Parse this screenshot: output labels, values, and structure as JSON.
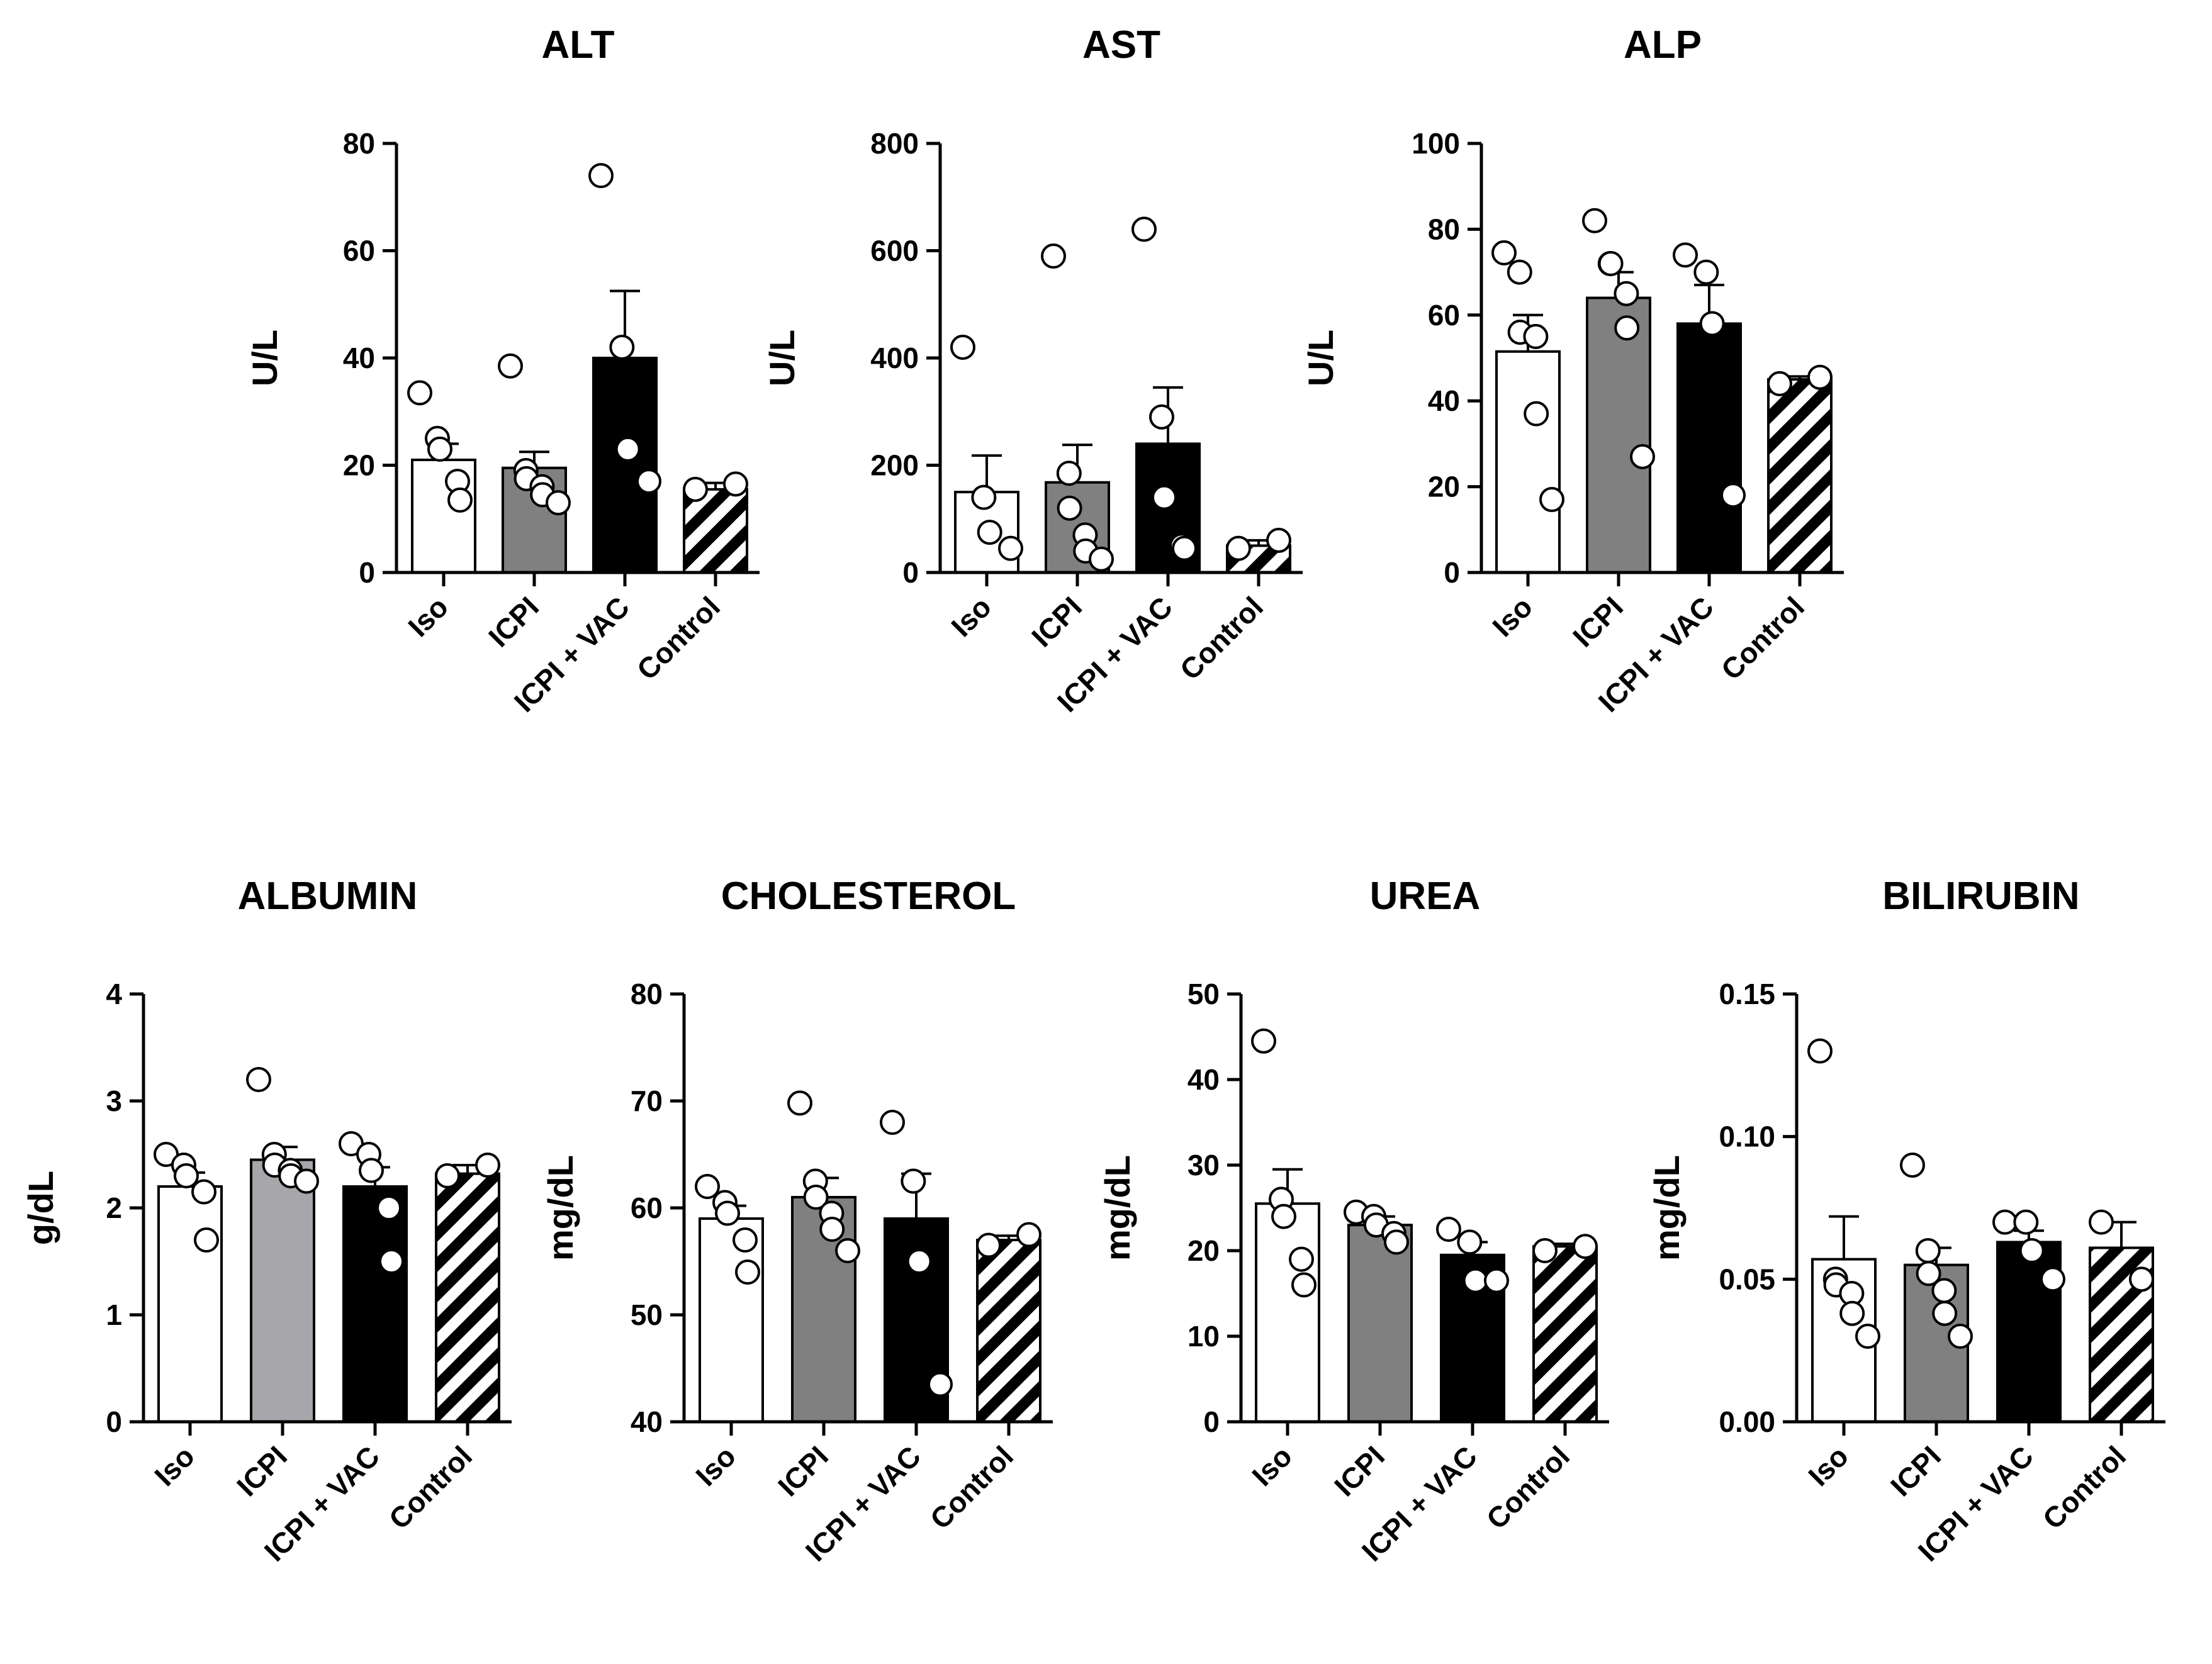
{
  "chart_data": [
    {
      "type": "bar",
      "title": "ALT",
      "ylabel": "U/L",
      "categories": [
        "Iso",
        "ICPI",
        "ICPI + VAC",
        "Control"
      ],
      "ylim": [
        0,
        80
      ],
      "yticks": [
        "0",
        "20",
        "40",
        "60",
        "80"
      ],
      "yticks_values": [
        0,
        20,
        40,
        60,
        80
      ],
      "values": [
        21,
        19.5,
        40,
        15.5
      ],
      "errors": [
        3,
        3,
        12.5,
        1.2
      ],
      "points": [
        [
          33.5,
          25,
          23,
          17,
          13.5
        ],
        [
          38.5,
          19,
          17.5,
          16,
          14.5,
          13
        ],
        [
          74,
          42,
          23,
          17
        ],
        [
          15.5,
          16.5
        ]
      ]
    },
    {
      "type": "bar",
      "title": "AST",
      "ylabel": "U/L",
      "categories": [
        "Iso",
        "ICPI",
        "ICPI + VAC",
        "Control"
      ],
      "ylim": [
        0,
        800
      ],
      "yticks": [
        "0",
        "200",
        "400",
        "600",
        "800"
      ],
      "yticks_values": [
        0,
        200,
        400,
        600,
        800
      ],
      "values": [
        150,
        168,
        240,
        50
      ],
      "errors": [
        68,
        70,
        105,
        10
      ],
      "points": [
        [
          420,
          140,
          75,
          45
        ],
        [
          590,
          185,
          120,
          70,
          40,
          25
        ],
        [
          640,
          290,
          140,
          50,
          45
        ],
        [
          45,
          60
        ]
      ]
    },
    {
      "type": "bar",
      "title": "ALP",
      "ylabel": "U/L",
      "categories": [
        "Iso",
        "ICPI",
        "ICPI + VAC",
        "Control"
      ],
      "ylim": [
        0,
        100
      ],
      "yticks": [
        "0",
        "20",
        "40",
        "60",
        "80",
        "100"
      ],
      "yticks_values": [
        0,
        20,
        40,
        60,
        80,
        100
      ],
      "values": [
        51.5,
        64,
        58,
        45
      ],
      "errors": [
        8.5,
        6,
        9,
        0.7
      ],
      "points": [
        [
          74.5,
          70,
          56,
          55,
          37,
          17
        ],
        [
          82,
          72,
          72,
          65,
          57,
          27
        ],
        [
          74,
          70,
          58,
          18
        ],
        [
          44,
          45.5
        ]
      ]
    },
    {
      "type": "bar",
      "title": "ALBUMIN",
      "ylabel": "g/dL",
      "categories": [
        "Iso",
        "ICPI",
        "ICPI + VAC",
        "Control"
      ],
      "ylim": [
        0,
        4
      ],
      "yticks": [
        "0",
        "1",
        "2",
        "3",
        "4"
      ],
      "yticks_values": [
        0,
        1,
        2,
        3,
        4
      ],
      "values": [
        2.2,
        2.45,
        2.2,
        2.32
      ],
      "errors": [
        0.13,
        0.12,
        0.18,
        0.08
      ],
      "points": [
        [
          2.5,
          2.4,
          2.3,
          2.15,
          1.7
        ],
        [
          3.2,
          2.5,
          2.4,
          2.35,
          2.3,
          2.25
        ],
        [
          2.6,
          2.5,
          2.35,
          2.0,
          1.5
        ],
        [
          2.3,
          2.4
        ]
      ]
    },
    {
      "type": "bar",
      "title": "CHOLESTEROL",
      "ylabel": "mg/dL",
      "categories": [
        "Iso",
        "ICPI",
        "ICPI + VAC",
        "Control"
      ],
      "ylim": [
        40,
        80
      ],
      "yticks": [
        "40",
        "50",
        "60",
        "70",
        "80"
      ],
      "yticks_values": [
        40,
        50,
        60,
        70,
        80
      ],
      "values": [
        59,
        61,
        59,
        57
      ],
      "errors": [
        1.2,
        1.8,
        4.2,
        0.4
      ],
      "points": [
        [
          62,
          60.5,
          59.5,
          57,
          54
        ],
        [
          69.8,
          62.5,
          61,
          59.5,
          58,
          56
        ],
        [
          68,
          62.5,
          55,
          43.5
        ],
        [
          56.5,
          57.5
        ]
      ]
    },
    {
      "type": "bar",
      "title": "UREA",
      "ylabel": "mg/dL",
      "categories": [
        "Iso",
        "ICPI",
        "ICPI + VAC",
        "Control"
      ],
      "ylim": [
        0,
        50
      ],
      "yticks": [
        "0",
        "10",
        "20",
        "30",
        "40",
        "50"
      ],
      "yticks_values": [
        0,
        10,
        20,
        30,
        40,
        50
      ],
      "values": [
        25.5,
        23,
        19.5,
        20.5
      ],
      "errors": [
        4,
        1,
        1.5,
        0.3
      ],
      "points": [
        [
          44.5,
          26,
          24,
          19,
          16
        ],
        [
          24.5,
          24,
          23,
          22,
          21
        ],
        [
          22.5,
          21,
          16.5,
          16.5
        ],
        [
          20,
          20.5
        ]
      ]
    },
    {
      "type": "bar",
      "title": "BILIRUBIN",
      "ylabel": "mg/dL",
      "categories": [
        "Iso",
        "ICPI",
        "ICPI + VAC",
        "Control"
      ],
      "ylim": [
        0,
        0.15
      ],
      "yticks": [
        "0.00",
        "0.05",
        "0.10",
        "0.15"
      ],
      "yticks_values": [
        0,
        0.05,
        0.1,
        0.15
      ],
      "values": [
        0.057,
        0.055,
        0.063,
        0.061
      ],
      "errors": [
        0.015,
        0.006,
        0.004,
        0.009
      ],
      "points": [
        [
          0.13,
          0.05,
          0.048,
          0.045,
          0.038,
          0.03
        ],
        [
          0.09,
          0.06,
          0.052,
          0.046,
          0.038,
          0.03
        ],
        [
          0.07,
          0.07,
          0.06,
          0.05
        ],
        [
          0.07,
          0.05
        ]
      ]
    }
  ],
  "colors": {
    "iso": "#ffffff",
    "icpi": "#808080",
    "albumin_icpi": "#a6a6ab",
    "icpi_vac": "#000000",
    "control_stripe": "#000000",
    "axis": "#000000"
  }
}
